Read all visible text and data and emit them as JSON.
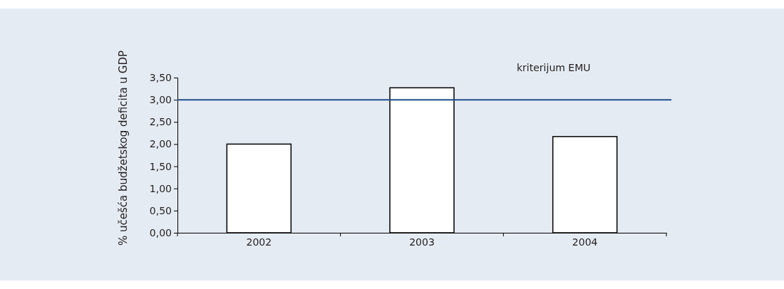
{
  "chart_data": {
    "type": "bar",
    "ylabel": "% učešća budžetskog deficita u GDP",
    "categories": [
      "2002",
      "2003",
      "2004"
    ],
    "values": [
      2.0,
      3.27,
      2.17
    ],
    "color": "#ffffff",
    "ylim": [
      0,
      3.5
    ],
    "yticks": [
      {
        "value": 0,
        "label": "0,00"
      },
      {
        "value": 0.5,
        "label": "0,50"
      },
      {
        "value": 1,
        "label": "1,00"
      },
      {
        "value": 1.5,
        "label": "1,50"
      },
      {
        "value": 2,
        "label": "2,00"
      },
      {
        "value": 2.5,
        "label": "2,50"
      },
      {
        "value": 3,
        "label": "3,00"
      },
      {
        "value": 3.5,
        "label": "3,50"
      }
    ],
    "ref_lines": [
      {
        "axis": "y",
        "value": 3,
        "label": "kriterijum EMU",
        "color": "#1f4e8c"
      }
    ],
    "grid": false
  }
}
